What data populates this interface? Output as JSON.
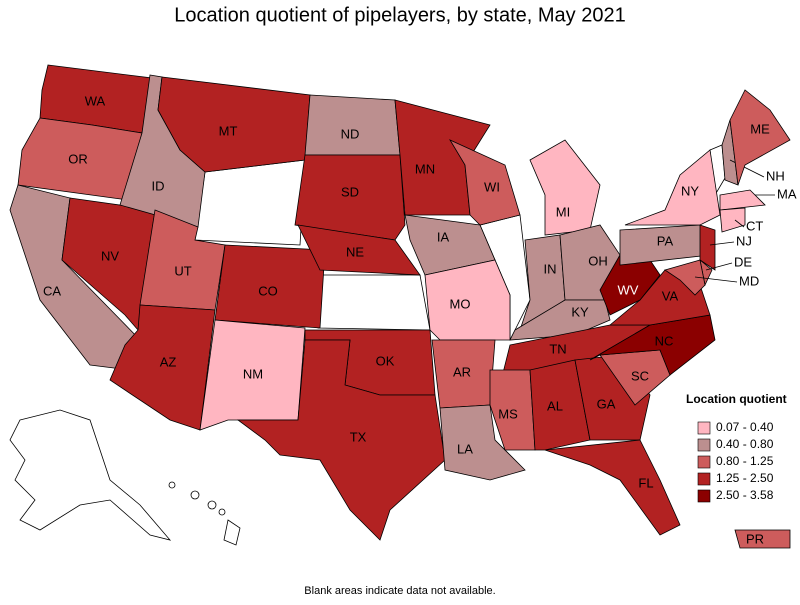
{
  "title": "Location quotient of pipelayers, by state, May 2021",
  "states": [
    {
      "label": "WA",
      "color": "#b22222"
    },
    {
      "label": "OR",
      "color": "#cd5c5c"
    },
    {
      "label": "CA",
      "color": "#bc8f8f"
    },
    {
      "label": "NV",
      "color": "#b22222"
    },
    {
      "label": "ID",
      "color": "#bc8f8f"
    },
    {
      "label": "MT",
      "color": "#b22222"
    },
    {
      "label": "UT",
      "color": "#cd5c5c"
    },
    {
      "label": "AZ",
      "color": "#b22222"
    },
    {
      "label": "CO",
      "color": "#b22222"
    },
    {
      "label": "NM",
      "color": "#ffb6c1"
    },
    {
      "label": "ND",
      "color": "#bc8f8f"
    },
    {
      "label": "SD",
      "color": "#b22222"
    },
    {
      "label": "NE",
      "color": "#b22222"
    },
    {
      "label": "OK",
      "color": "#b22222"
    },
    {
      "label": "TX",
      "color": "#b22222"
    },
    {
      "label": "MN",
      "color": "#b22222"
    },
    {
      "label": "IA",
      "color": "#bc8f8f"
    },
    {
      "label": "MO",
      "color": "#ffb6c1"
    },
    {
      "label": "AR",
      "color": "#cd5c5c"
    },
    {
      "label": "LA",
      "color": "#bc8f8f"
    },
    {
      "label": "WI",
      "color": "#cd5c5c"
    },
    {
      "label": "MI",
      "color": "#ffb6c1"
    },
    {
      "label": "IN",
      "color": "#bc8f8f"
    },
    {
      "label": "OH",
      "color": "#bc8f8f"
    },
    {
      "label": "KY",
      "color": "#bc8f8f"
    },
    {
      "label": "TN",
      "color": "#b22222"
    },
    {
      "label": "MS",
      "color": "#cd5c5c"
    },
    {
      "label": "AL",
      "color": "#b22222"
    },
    {
      "label": "GA",
      "color": "#b22222"
    },
    {
      "label": "FL",
      "color": "#b22222"
    },
    {
      "label": "SC",
      "color": "#cd5c5c"
    },
    {
      "label": "NC",
      "color": "#8b0000"
    },
    {
      "label": "VA",
      "color": "#b22222"
    },
    {
      "label": "WV",
      "color": "#8b0000"
    },
    {
      "label": "PA",
      "color": "#bc8f8f"
    },
    {
      "label": "NY",
      "color": "#ffb6c1"
    },
    {
      "label": "NH",
      "color": "#bc8f8f"
    },
    {
      "label": "ME",
      "color": "#cd5c5c"
    },
    {
      "label": "MA",
      "color": "#ffb6c1"
    },
    {
      "label": "CT",
      "color": "#ffb6c1"
    },
    {
      "label": "NJ",
      "color": "#b22222"
    },
    {
      "label": "DE",
      "color": "#cd5c5c"
    },
    {
      "label": "MD",
      "color": "#cd5c5c"
    },
    {
      "label": "PR",
      "color": "#cd5c5c"
    }
  ],
  "legend": {
    "title": "Location quotient",
    "items": [
      {
        "label": "0.07 - 0.40",
        "color": "#ffb6c1"
      },
      {
        "label": "0.40 - 0.80",
        "color": "#bc8f8f"
      },
      {
        "label": "0.80 - 1.25",
        "color": "#cd5c5c"
      },
      {
        "label": "1.25 - 2.50",
        "color": "#b22222"
      },
      {
        "label": "2.50 - 3.58",
        "color": "#8b0000"
      }
    ]
  },
  "footnote": "Blank areas indicate data not available."
}
